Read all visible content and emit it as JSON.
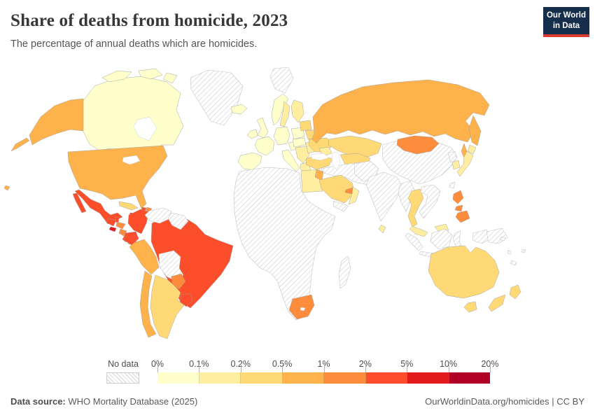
{
  "header": {
    "title": "Share of deaths from homicide, 2023",
    "subtitle": "The percentage of annual deaths which are homicides.",
    "logo_line1": "Our World",
    "logo_line2": "in Data",
    "logo_bg": "#142e4c",
    "logo_accent": "#dc3a2f"
  },
  "legend": {
    "no_data_label": "No data",
    "tick_labels": [
      "0%",
      "0.1%",
      "0.2%",
      "0.5%",
      "1%",
      "2%",
      "5%",
      "10%",
      "20%"
    ]
  },
  "footer": {
    "source_label": "Data source:",
    "source_text": " WHO Mortality Database (2025)",
    "credit": "OurWorldinData.org/homicides | CC BY"
  },
  "chart_data": {
    "type": "heatmap",
    "subtype": "choropleth-world-map",
    "title": "Share of deaths from homicide, 2023",
    "unit": "% of annual deaths that are homicides",
    "year": "2023",
    "legend_position": "bottom",
    "no_data_style": "diagonal-hatch",
    "legend_bins": [
      {
        "range": "0-0.1%",
        "color": "#ffffcc"
      },
      {
        "range": "0.1-0.2%",
        "color": "#ffeda0"
      },
      {
        "range": "0.2-0.5%",
        "color": "#fed976"
      },
      {
        "range": "0.5-1%",
        "color": "#feb24c"
      },
      {
        "range": "1-2%",
        "color": "#fd8d3c"
      },
      {
        "range": "2-5%",
        "color": "#fc4e2a"
      },
      {
        "range": "5-10%",
        "color": "#e31a1c"
      },
      {
        "range": "10-20%",
        "color": "#b10026"
      }
    ],
    "regions": [
      {
        "id": "canada",
        "name": "Canada",
        "bin": "0-0.1%"
      },
      {
        "id": "arctic1",
        "name": "Canada (Arctic islands W)",
        "bin": "0-0.1%"
      },
      {
        "id": "arctic2",
        "name": "Canada (Arctic islands C)",
        "bin": "0-0.1%"
      },
      {
        "id": "arctic3",
        "name": "Canada (Arctic islands E)",
        "bin": "0-0.1%"
      },
      {
        "id": "greenland",
        "name": "Greenland",
        "bin": "no-data"
      },
      {
        "id": "svalbard",
        "name": "Svalbard",
        "bin": "no-data"
      },
      {
        "id": "alaska",
        "name": "United States (Alaska)",
        "bin": "0.5-1%"
      },
      {
        "id": "aleutian",
        "name": "United States (Aleutians)",
        "bin": "0.5-1%"
      },
      {
        "id": "usa",
        "name": "United States",
        "bin": "0.5-1%"
      },
      {
        "id": "hawaii",
        "name": "United States (Hawaii)",
        "bin": "0.5-1%"
      },
      {
        "id": "mexico",
        "name": "Mexico",
        "bin": "2-5%"
      },
      {
        "id": "baja",
        "name": "Mexico (Baja California)",
        "bin": "2-5%"
      },
      {
        "id": "guatemala",
        "name": "Guatemala",
        "bin": "2-5%"
      },
      {
        "id": "belize",
        "name": "Belize",
        "bin": "2-5%"
      },
      {
        "id": "honduras",
        "name": "Honduras",
        "bin": "1-2%"
      },
      {
        "id": "elsalvador",
        "name": "El Salvador",
        "bin": "5-10%"
      },
      {
        "id": "nicaragua",
        "name": "Nicaragua",
        "bin": "1-2%"
      },
      {
        "id": "costarica",
        "name": "Costa Rica",
        "bin": "2-5%"
      },
      {
        "id": "panama",
        "name": "Panama",
        "bin": "2-5%"
      },
      {
        "id": "cuba",
        "name": "Cuba",
        "bin": "0.2-0.5%"
      },
      {
        "id": "jamaica",
        "name": "Jamaica",
        "bin": "5-10%"
      },
      {
        "id": "haiti",
        "name": "Haiti",
        "bin": "2-5%"
      },
      {
        "id": "domrep",
        "name": "Dominican Republic",
        "bin": "1-2%"
      },
      {
        "id": "puertorico",
        "name": "Puerto Rico",
        "bin": "1-2%"
      },
      {
        "id": "antilles1",
        "name": "Lesser Antilles N",
        "bin": "no-data"
      },
      {
        "id": "antilles2",
        "name": "Lesser Antilles S",
        "bin": "no-data"
      },
      {
        "id": "brazil",
        "name": "Brazil",
        "bin": "2-5%"
      },
      {
        "id": "bolivia",
        "name": "Bolivia",
        "bin": "no-data"
      },
      {
        "id": "paraguay",
        "name": "Paraguay",
        "bin": "1-2%"
      },
      {
        "id": "argentina",
        "name": "Argentina",
        "bin": "0.2-0.5%"
      },
      {
        "id": "uruguay",
        "name": "Uruguay",
        "bin": "2-5%"
      },
      {
        "id": "chile",
        "name": "Chile",
        "bin": "0.5-1%"
      },
      {
        "id": "peru",
        "name": "Peru",
        "bin": "0.5-1%"
      },
      {
        "id": "colombia",
        "name": "Colombia",
        "bin": "2-5%"
      },
      {
        "id": "venezuela",
        "name": "Venezuela",
        "bin": "no-data"
      },
      {
        "id": "guyanas",
        "name": "Guyana & Suriname",
        "bin": "no-data"
      },
      {
        "id": "ecuador",
        "name": "Ecuador",
        "bin": "2-5%"
      },
      {
        "id": "iceland",
        "name": "Iceland",
        "bin": "0-0.1%"
      },
      {
        "id": "uk",
        "name": "United Kingdom",
        "bin": "0-0.1%"
      },
      {
        "id": "ireland",
        "name": "Ireland",
        "bin": "0-0.1%"
      },
      {
        "id": "norway",
        "name": "Norway",
        "bin": "0-0.1%"
      },
      {
        "id": "sweden",
        "name": "Sweden",
        "bin": "0.1-0.2%"
      },
      {
        "id": "finland",
        "name": "Finland",
        "bin": "0.1-0.2%"
      },
      {
        "id": "denmark",
        "name": "Denmark",
        "bin": "0-0.1%"
      },
      {
        "id": "iberia",
        "name": "Spain & Portugal",
        "bin": "0-0.1%"
      },
      {
        "id": "france",
        "name": "France",
        "bin": "0-0.1%"
      },
      {
        "id": "germany",
        "name": "Germany & Low Countries",
        "bin": "0-0.1%"
      },
      {
        "id": "italy",
        "name": "Italy",
        "bin": "0-0.1%"
      },
      {
        "id": "sicily",
        "name": "Italy (Sicily)",
        "bin": "0-0.1%"
      },
      {
        "id": "alpine",
        "name": "Austria & Switzerland",
        "bin": "0-0.1%"
      },
      {
        "id": "poland",
        "name": "Poland",
        "bin": "0-0.1%"
      },
      {
        "id": "czechia_hu",
        "name": "Czechia, Slovakia & Hungary",
        "bin": "0-0.1%"
      },
      {
        "id": "balkans",
        "name": "Western Balkans",
        "bin": "0.1-0.2%"
      },
      {
        "id": "greece",
        "name": "Greece",
        "bin": "0.1-0.2%"
      },
      {
        "id": "romania",
        "name": "Romania & Bulgaria",
        "bin": "0.1-0.2%"
      },
      {
        "id": "baltics",
        "name": "Baltic states",
        "bin": "0.2-0.5%"
      },
      {
        "id": "belarus",
        "name": "Belarus",
        "bin": "0.2-0.5%"
      },
      {
        "id": "ukraine",
        "name": "Ukraine",
        "bin": "0.2-0.5%"
      },
      {
        "id": "russia",
        "name": "Russia",
        "bin": "0.5-1%"
      },
      {
        "id": "kamchatka",
        "name": "Russia (Kamchatka)",
        "bin": "0.5-1%"
      },
      {
        "id": "sakhalin",
        "name": "Russia (Sakhalin)",
        "bin": "0.5-1%"
      },
      {
        "id": "kazakhstan",
        "name": "Kazakhstan",
        "bin": "0.2-0.5%"
      },
      {
        "id": "centralasia",
        "name": "Central Asia",
        "bin": "0.2-0.5%"
      },
      {
        "id": "caucasus",
        "name": "Caucasus",
        "bin": "0.1-0.2%"
      },
      {
        "id": "africa",
        "name": "Africa (most countries)",
        "bin": "no-data"
      },
      {
        "id": "egypt",
        "name": "Egypt",
        "bin": "0.1-0.2%"
      },
      {
        "id": "southafrica",
        "name": "South Africa",
        "bin": "1-2%"
      },
      {
        "id": "madagascar",
        "name": "Madagascar",
        "bin": "no-data"
      },
      {
        "id": "iran_block",
        "name": "Iran, Iraq & Syria",
        "bin": "no-data"
      },
      {
        "id": "turkey",
        "name": "Turkey",
        "bin": "0.2-0.5%"
      },
      {
        "id": "israeljordan",
        "name": "Israel & Jordan",
        "bin": "0.5-1%"
      },
      {
        "id": "saudi",
        "name": "Saudi Arabia",
        "bin": "0.2-0.5%"
      },
      {
        "id": "yemen",
        "name": "Yemen",
        "bin": "no-data"
      },
      {
        "id": "oman",
        "name": "Oman",
        "bin": "0.1-0.2%"
      },
      {
        "id": "uae",
        "name": "United Arab Emirates",
        "bin": "1-2%"
      },
      {
        "id": "pakistan_afghan",
        "name": "Pakistan & Afghanistan",
        "bin": "no-data"
      },
      {
        "id": "india",
        "name": "India",
        "bin": "no-data"
      },
      {
        "id": "srilanka",
        "name": "Sri Lanka",
        "bin": "0.1-0.2%"
      },
      {
        "id": "china",
        "name": "China",
        "bin": "no-data"
      },
      {
        "id": "mongolia",
        "name": "Mongolia",
        "bin": "1-2%"
      },
      {
        "id": "nkorea",
        "name": "North Korea",
        "bin": "no-data"
      },
      {
        "id": "skorea",
        "name": "South Korea",
        "bin": "0.1-0.2%"
      },
      {
        "id": "japan",
        "name": "Japan",
        "bin": "0.1-0.2%"
      },
      {
        "id": "hokkaido",
        "name": "Japan (Hokkaido)",
        "bin": "0.1-0.2%"
      },
      {
        "id": "taiwan",
        "name": "Taiwan",
        "bin": "no-data"
      },
      {
        "id": "myanmar",
        "name": "Myanmar",
        "bin": "no-data"
      },
      {
        "id": "thailand",
        "name": "Thailand",
        "bin": "0.2-0.5%"
      },
      {
        "id": "indochina",
        "name": "Vietnam, Laos & Cambodia",
        "bin": "no-data"
      },
      {
        "id": "malaysia",
        "name": "Malaysia",
        "bin": "0.1-0.2%"
      },
      {
        "id": "borneo_my",
        "name": "Malaysia (Borneo)",
        "bin": "0.1-0.2%"
      },
      {
        "id": "sumatra",
        "name": "Indonesia (Sumatra)",
        "bin": "no-data"
      },
      {
        "id": "java",
        "name": "Indonesia (Java)",
        "bin": "no-data"
      },
      {
        "id": "borneo_id",
        "name": "Indonesia (Kalimantan)",
        "bin": "no-data"
      },
      {
        "id": "sulawesi",
        "name": "Indonesia (Sulawesi)",
        "bin": "no-data"
      },
      {
        "id": "wpapua",
        "name": "Indonesia (West Papua)",
        "bin": "no-data"
      },
      {
        "id": "png",
        "name": "Papua New Guinea",
        "bin": "no-data"
      },
      {
        "id": "luzon",
        "name": "Philippines (Luzon)",
        "bin": "1-2%"
      },
      {
        "id": "visayas",
        "name": "Philippines (Visayas)",
        "bin": "1-2%"
      },
      {
        "id": "mindanao",
        "name": "Philippines (Mindanao)",
        "bin": "1-2%"
      },
      {
        "id": "australia",
        "name": "Australia",
        "bin": "0.2-0.5%"
      },
      {
        "id": "tasmania",
        "name": "Australia (Tasmania)",
        "bin": "0.2-0.5%"
      },
      {
        "id": "nz_north",
        "name": "New Zealand (North Island)",
        "bin": "0.2-0.5%"
      },
      {
        "id": "nz_south",
        "name": "New Zealand (South Island)",
        "bin": "0.2-0.5%"
      },
      {
        "id": "solomon",
        "name": "Solomon Islands",
        "bin": "no-data"
      },
      {
        "id": "vanuatu",
        "name": "Vanuatu",
        "bin": "no-data"
      },
      {
        "id": "fiji",
        "name": "Fiji",
        "bin": "no-data"
      },
      {
        "id": "newcal",
        "name": "New Caledonia",
        "bin": "no-data"
      }
    ]
  }
}
